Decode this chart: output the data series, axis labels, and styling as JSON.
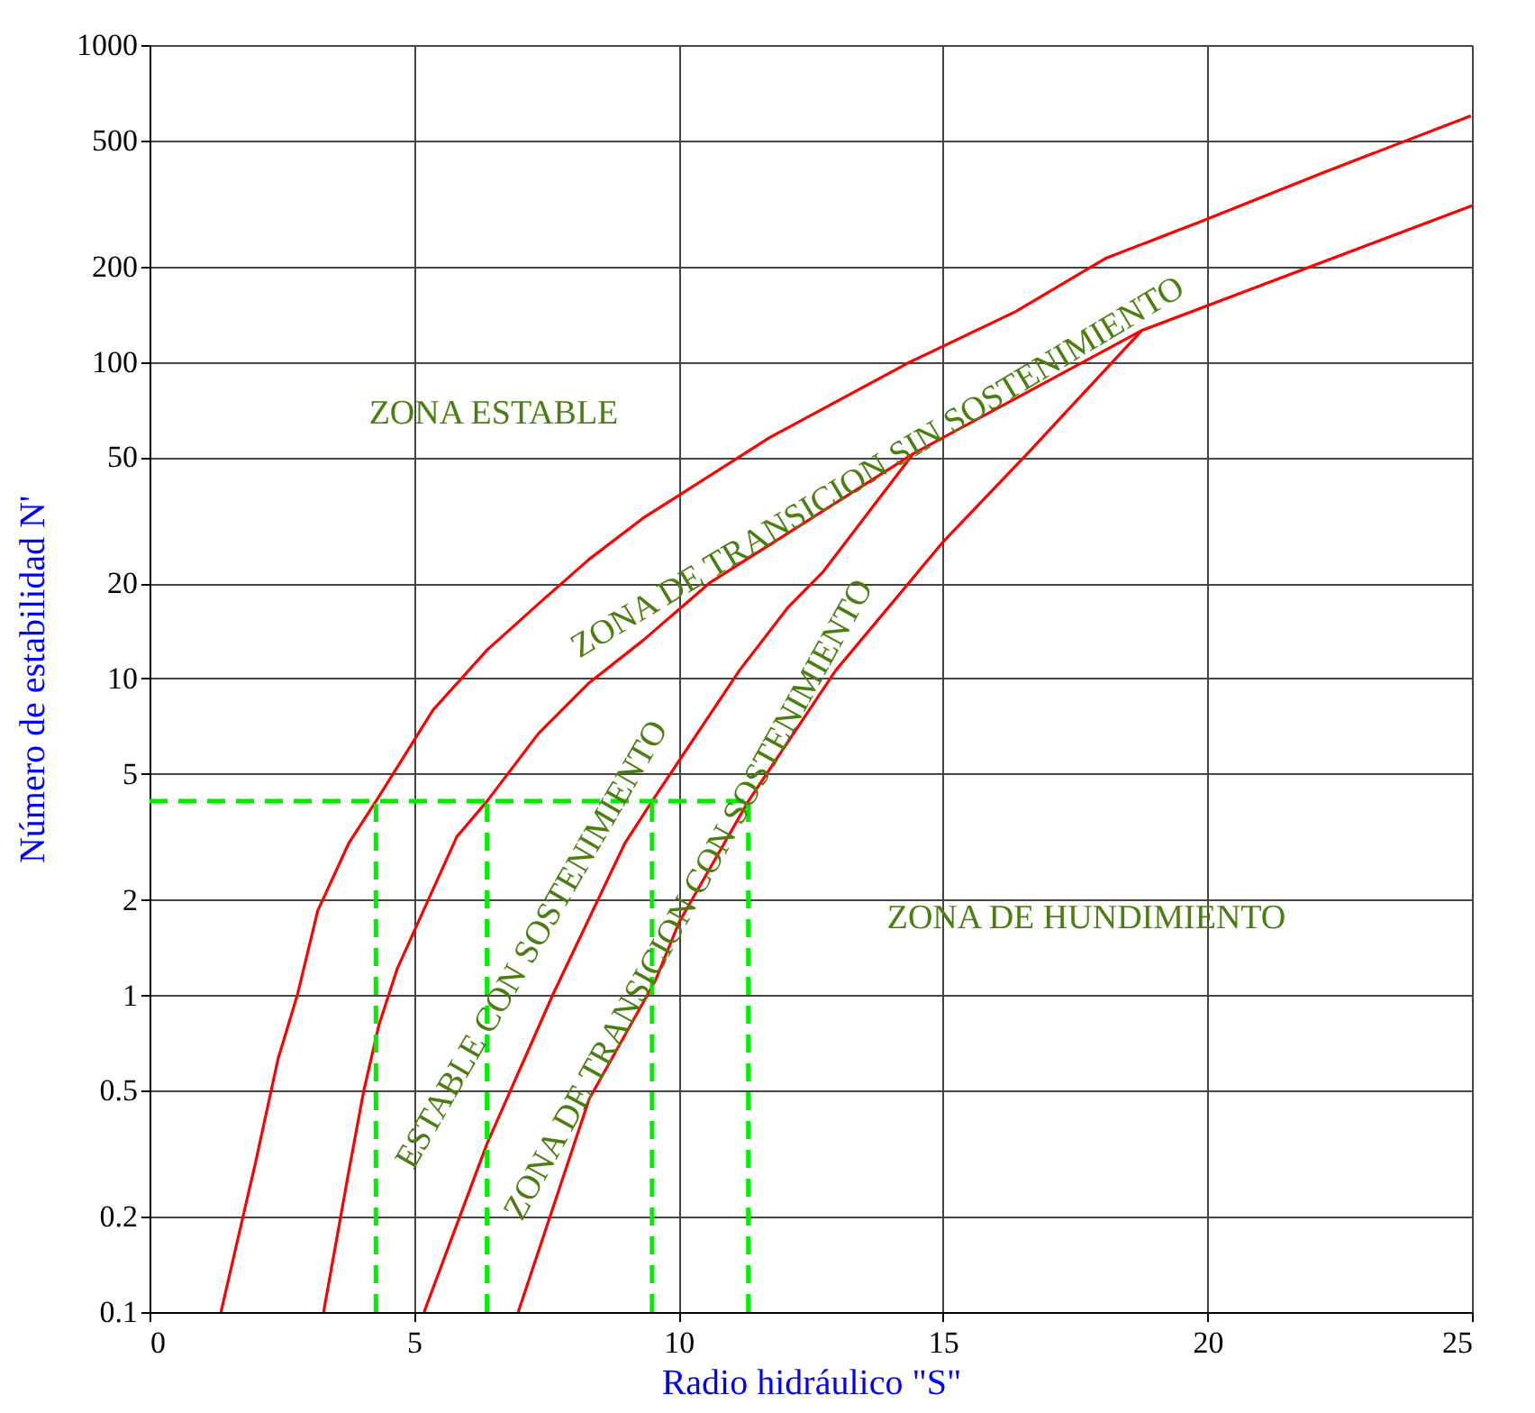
{
  "chart_data": {
    "type": "line",
    "xlabel": "Radio hidráulico \"S\"",
    "ylabel": "Número de estabilidad N'",
    "xlim": [
      0,
      25
    ],
    "xticks": [
      0,
      5,
      10,
      15,
      20,
      25
    ],
    "ylim": [
      0.1,
      1000
    ],
    "log": true,
    "yticks": [
      0.1,
      0.2,
      0.5,
      1,
      2,
      5,
      10,
      20,
      50,
      100,
      200,
      500,
      1000
    ],
    "grid": true,
    "marker": "none",
    "series": [
      {
        "color": "#ff0000",
        "line_style": "solid",
        "x": [
          1.35,
          2.01,
          2.43,
          2.8,
          3.18,
          3.77,
          4.28,
          5.36,
          6.38,
          7.4,
          8.31,
          9.33,
          11.72,
          14.33,
          16.37,
          18.07,
          19.89,
          22.16,
          24.98
        ],
        "values": [
          0.1,
          0.3,
          0.63,
          1.01,
          1.85,
          3.03,
          4.1,
          7.96,
          12.3,
          17.5,
          23.8,
          32.1,
          57.6,
          99,
          144,
          212,
          278,
          394,
          598
        ]
      },
      {
        "color": "#ff0000",
        "line_style": "solid",
        "x": [
          3.29,
          3.77,
          4.05,
          4.34,
          4.68,
          5.19,
          5.81,
          6.38,
          7.35,
          8.31,
          9.33,
          10.58,
          14.44,
          18.76,
          25.0
        ],
        "values": [
          0.1,
          0.28,
          0.5,
          0.81,
          1.21,
          1.87,
          3.17,
          4.1,
          6.7,
          9.7,
          13.2,
          20.0,
          51.3,
          125.7,
          311
        ]
      },
      {
        "color": "#ff0000",
        "line_style": "solid",
        "x": [
          5.19,
          6.38,
          7.63,
          8.99,
          9.5,
          11.15,
          12.06,
          12.74,
          14.44
        ],
        "values": [
          0.1,
          0.34,
          1.01,
          3.03,
          4.1,
          10.6,
          16.7,
          21.8,
          51.3
        ]
      },
      {
        "color": "#ff0000",
        "line_style": "solid",
        "x": [
          6.97,
          8.31,
          9.56,
          10.01,
          11.32,
          12.97,
          15.01,
          16.6,
          18.76
        ],
        "values": [
          0.1,
          0.47,
          1.11,
          1.7,
          4.1,
          10.6,
          27.1,
          51.4,
          125.7
        ]
      },
      {
        "color": "#00ee00",
        "line_style": "dashed",
        "x": [
          0,
          11.32
        ],
        "values": [
          4.1,
          4.1
        ]
      },
      {
        "color": "#00ee00",
        "line_style": "dashed",
        "x": [
          4.28,
          4.28
        ],
        "values": [
          0.1,
          4.1
        ]
      },
      {
        "color": "#00ee00",
        "line_style": "dashed",
        "x": [
          6.38,
          6.38
        ],
        "values": [
          0.1,
          4.1
        ]
      },
      {
        "color": "#00ee00",
        "line_style": "dashed",
        "x": [
          9.5,
          9.5
        ],
        "values": [
          0.1,
          4.1
        ]
      },
      {
        "color": "#00ee00",
        "line_style": "dashed",
        "x": [
          11.32,
          11.32
        ],
        "values": [
          0.1,
          4.1
        ]
      }
    ],
    "annotations": [
      "ZONA ESTABLE",
      "ZONA DE TRANSICION  SIN SOSTENIMIENTO",
      "ESTABLE CON SOSTENIMIENTO",
      "ZONA DE TRANSICION  CON SOSTENIMIENTO",
      "ZONA DE HUNDIMIENTO"
    ]
  }
}
